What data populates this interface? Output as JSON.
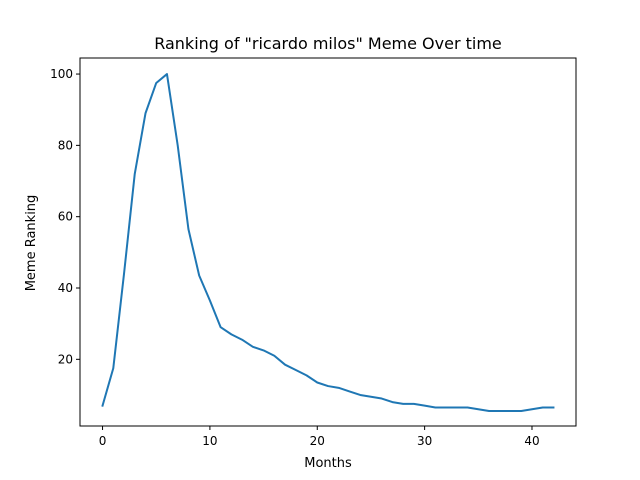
{
  "chart_data": {
    "type": "line",
    "title": "Ranking of \"ricardo milos\" Meme Over time",
    "xlabel": "Months",
    "ylabel": "Meme Ranking",
    "xlim": [
      -2.1,
      44.1
    ],
    "ylim": [
      1.3,
      104.5
    ],
    "x_ticks": [
      0,
      10,
      20,
      30,
      40
    ],
    "y_ticks": [
      20,
      40,
      60,
      80,
      100
    ],
    "grid": false,
    "legend": "none",
    "series": [
      {
        "color": "#1f77b4",
        "x": [
          0,
          1,
          2,
          3,
          4,
          5,
          6,
          7,
          8,
          9,
          10,
          11,
          12,
          13,
          14,
          15,
          16,
          17,
          18,
          19,
          20,
          21,
          22,
          23,
          24,
          25,
          26,
          27,
          28,
          29,
          30,
          31,
          32,
          33,
          34,
          35,
          36,
          37,
          38,
          39,
          40,
          41,
          42
        ],
        "y": [
          7,
          17.5,
          44,
          72,
          89,
          97.5,
          100,
          80,
          56.5,
          43.5,
          36.5,
          29,
          27,
          25.5,
          23.5,
          22.5,
          21,
          18.5,
          17,
          15.5,
          13.5,
          12.5,
          12,
          11,
          10,
          9.5,
          9,
          8,
          7.5,
          7.5,
          7,
          6.5,
          6.5,
          6.5,
          6.5,
          6,
          5.5,
          5.5,
          5.5,
          5.5,
          6,
          6.5,
          6.5
        ]
      }
    ]
  }
}
